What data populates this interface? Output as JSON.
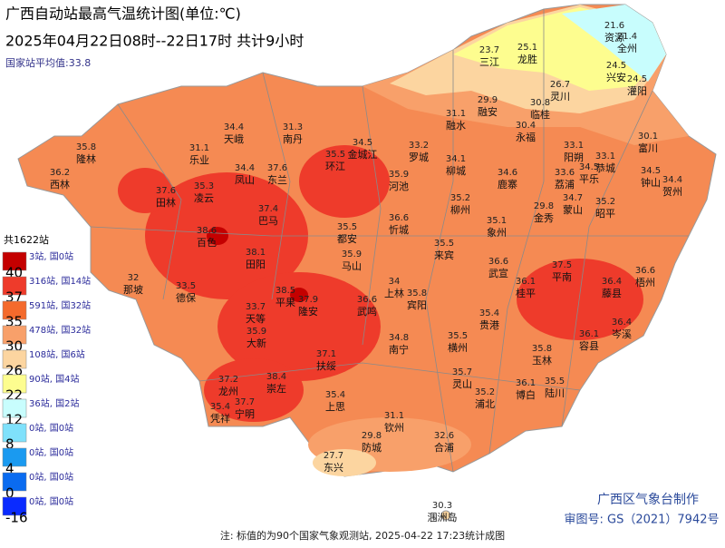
{
  "header": {
    "title": "广西自动站最高气温统计图(单位:℃)",
    "subtitle": "2025年04月22日08时--22日17时 共计9小时",
    "average": "国家站平均值:33.8"
  },
  "legend": {
    "total": "共1622站",
    "items": [
      {
        "color": "#c40000",
        "count": "3站, 国0站",
        "upper": "40"
      },
      {
        "color": "#ee3b2b",
        "count": "316站, 国14站",
        "upper": "37"
      },
      {
        "color": "#f46a2c",
        "count": "591站, 国32站",
        "upper": "35"
      },
      {
        "color": "#f8a06a",
        "count": "478站, 国32站",
        "upper": "30"
      },
      {
        "color": "#fcd5a0",
        "count": "108站, 国6站",
        "upper": "26"
      },
      {
        "color": "#fdfd8f",
        "count": "90站, 国4站",
        "upper": "22"
      },
      {
        "color": "#c8fdfd",
        "count": "36站, 国2站",
        "upper": "12"
      },
      {
        "color": "#7fe1fb",
        "count": "0站, 国0站",
        "upper": "8"
      },
      {
        "color": "#1a9af0",
        "count": "0站, 国0站",
        "upper": "4"
      },
      {
        "color": "#0a6bf0",
        "count": "0站, 国0站",
        "upper": "0"
      },
      {
        "color": "#0a2bff",
        "count": "0站, 国0站",
        "upper": "-16"
      }
    ]
  },
  "stations": [
    {
      "name": "资源",
      "value": 21.6
    },
    {
      "name": "全州",
      "value": 21.4
    },
    {
      "name": "三江",
      "value": 23.7
    },
    {
      "name": "龙胜",
      "value": 25.1
    },
    {
      "name": "兴安",
      "value": 24.5
    },
    {
      "name": "灌阳",
      "value": 24.5
    },
    {
      "name": "灵川",
      "value": 26.7
    },
    {
      "name": "临桂",
      "value": 30.8
    },
    {
      "name": "融安",
      "value": 29.9
    },
    {
      "name": "融水",
      "value": 31.1
    },
    {
      "name": "永福",
      "value": 30.4
    },
    {
      "name": "隆林",
      "value": 35.8
    },
    {
      "name": "西林",
      "value": 36.2
    },
    {
      "name": "天峨",
      "value": 34.4
    },
    {
      "name": "南丹",
      "value": 31.3
    },
    {
      "name": "乐业",
      "value": 31.1
    },
    {
      "name": "凤山",
      "value": 34.4
    },
    {
      "name": "东兰",
      "value": 37.6
    },
    {
      "name": "环江",
      "value": 35.5
    },
    {
      "name": "金城江",
      "value": 34.5
    },
    {
      "name": "罗城",
      "value": 33.2
    },
    {
      "name": "河池",
      "value": 35.9
    },
    {
      "name": "柳城",
      "value": 34.1
    },
    {
      "name": "鹿寨",
      "value": 34.6
    },
    {
      "name": "柳州",
      "value": 35.2
    },
    {
      "name": "阳朔",
      "value": 33.1
    },
    {
      "name": "恭城",
      "value": 33.1
    },
    {
      "name": "富川",
      "value": 30.1
    },
    {
      "name": "钟山",
      "value": 34.5
    },
    {
      "name": "贺州",
      "value": 34.4
    },
    {
      "name": "荔浦",
      "value": 33.6
    },
    {
      "name": "平乐",
      "value": 34.5
    },
    {
      "name": "昭平",
      "value": 35.2
    },
    {
      "name": "蒙山",
      "value": 34.7
    },
    {
      "name": "金秀",
      "value": 29.8
    },
    {
      "name": "象州",
      "value": 35.1
    },
    {
      "name": "忻城",
      "value": 36.6
    },
    {
      "name": "都安",
      "value": 35.5
    },
    {
      "name": "巴马",
      "value": 37.4
    },
    {
      "name": "凌云",
      "value": 35.3
    },
    {
      "name": "田林",
      "value": 37.6
    },
    {
      "name": "百色",
      "value": 38.6
    },
    {
      "name": "田阳",
      "value": 38.1
    },
    {
      "name": "马山",
      "value": 35.9
    },
    {
      "name": "来宾",
      "value": 35.5
    },
    {
      "name": "武宣",
      "value": 36.6
    },
    {
      "name": "桂平",
      "value": 36.1
    },
    {
      "name": "平南",
      "value": 37.5
    },
    {
      "name": "藤县",
      "value": 36.4
    },
    {
      "name": "梧州",
      "value": 36.6
    },
    {
      "name": "上林",
      "value": 34
    },
    {
      "name": "宾阳",
      "value": 35.8
    },
    {
      "name": "武鸣",
      "value": 36.6
    },
    {
      "name": "隆安",
      "value": 37.9
    },
    {
      "name": "平果",
      "value": 38.5
    },
    {
      "name": "那坡",
      "value": 32
    },
    {
      "name": "德保",
      "value": 33.5
    },
    {
      "name": "天等",
      "value": 33.7
    },
    {
      "name": "大新",
      "value": 35.9
    },
    {
      "name": "贵港",
      "value": 35.4
    },
    {
      "name": "岑溪",
      "value": 36.4
    },
    {
      "name": "容县",
      "value": 36.1
    },
    {
      "name": "横州",
      "value": 35.5
    },
    {
      "name": "南宁",
      "value": 34.8
    },
    {
      "name": "扶绥",
      "value": 37.1
    },
    {
      "name": "玉林",
      "value": 35.8
    },
    {
      "name": "崇左",
      "value": 38.4
    },
    {
      "name": "龙州",
      "value": 37.2
    },
    {
      "name": "宁明",
      "value": 37.7
    },
    {
      "name": "凭祥",
      "value": 35.4
    },
    {
      "name": "灵山",
      "value": 35.7
    },
    {
      "name": "浦北",
      "value": 35.2
    },
    {
      "name": "博白",
      "value": 36.1
    },
    {
      "name": "陆川",
      "value": 35.5
    },
    {
      "name": "上思",
      "value": 35.4
    },
    {
      "name": "钦州",
      "value": 31.1
    },
    {
      "name": "防城",
      "value": 29.8
    },
    {
      "name": "东兴",
      "value": 27.7
    },
    {
      "name": "合浦",
      "value": 32.6
    },
    {
      "name": "涠洲岛",
      "value": 30.3
    }
  ],
  "credits": {
    "producer": "广西区气象台制作",
    "approval": "审图号: GS（2021）7942号"
  },
  "footer": "注: 标值的为90个国家气象观测站, 2025-04-22 17:23统计成图"
}
